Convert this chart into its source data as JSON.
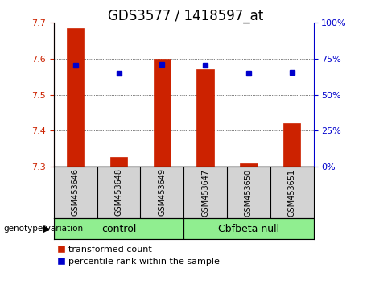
{
  "title": "GDS3577 / 1418597_at",
  "samples": [
    "GSM453646",
    "GSM453648",
    "GSM453649",
    "GSM453647",
    "GSM453650",
    "GSM453651"
  ],
  "red_values": [
    7.685,
    7.328,
    7.6,
    7.572,
    7.31,
    7.42
  ],
  "blue_values": [
    70.5,
    65.0,
    71.0,
    70.5,
    65.0,
    65.5
  ],
  "bar_bottom": 7.3,
  "ylim_left": [
    7.3,
    7.7
  ],
  "ylim_right": [
    0,
    100
  ],
  "yticks_left": [
    7.3,
    7.4,
    7.5,
    7.6,
    7.7
  ],
  "yticks_right": [
    0,
    25,
    50,
    75,
    100
  ],
  "groups": [
    {
      "label": "control",
      "indices": [
        0,
        2
      ],
      "color": "#90ee90"
    },
    {
      "label": "Cbfbeta null",
      "indices": [
        3,
        5
      ],
      "color": "#90ee90"
    }
  ],
  "red_color": "#cc2200",
  "blue_color": "#0000cc",
  "bar_width": 0.4,
  "bg_color": "#ffffff",
  "plot_bg_color": "#ffffff",
  "tick_label_area_color": "#d3d3d3",
  "title_fontsize": 12,
  "legend_fontsize": 8,
  "group_label_fontsize": 9,
  "sample_fontsize": 7
}
